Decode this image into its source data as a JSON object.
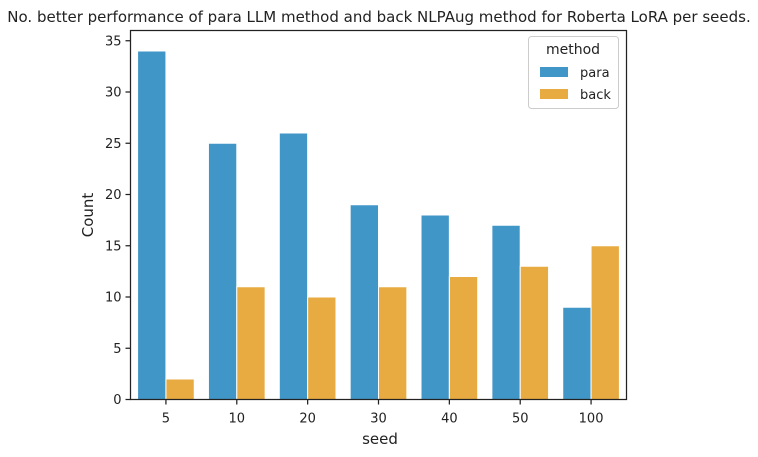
{
  "chart_data": {
    "type": "bar",
    "title": "No. better performance of para LLM method and back NLPAug method for Roberta LoRA per seeds.",
    "xlabel": "seed",
    "ylabel": "Count",
    "categories": [
      "5",
      "10",
      "20",
      "30",
      "40",
      "50",
      "100"
    ],
    "ylim": [
      0,
      36
    ],
    "yticks": [
      0,
      5,
      10,
      15,
      20,
      25,
      30,
      35
    ],
    "grid": false,
    "legend": {
      "title": "method",
      "placement": "top-right"
    },
    "series": [
      {
        "name": "para",
        "color": "#4196c8",
        "values": [
          34,
          25,
          26,
          19,
          18,
          17,
          9
        ]
      },
      {
        "name": "back",
        "color": "#e8ab42",
        "values": [
          2,
          11,
          10,
          11,
          12,
          13,
          15
        ]
      }
    ]
  }
}
